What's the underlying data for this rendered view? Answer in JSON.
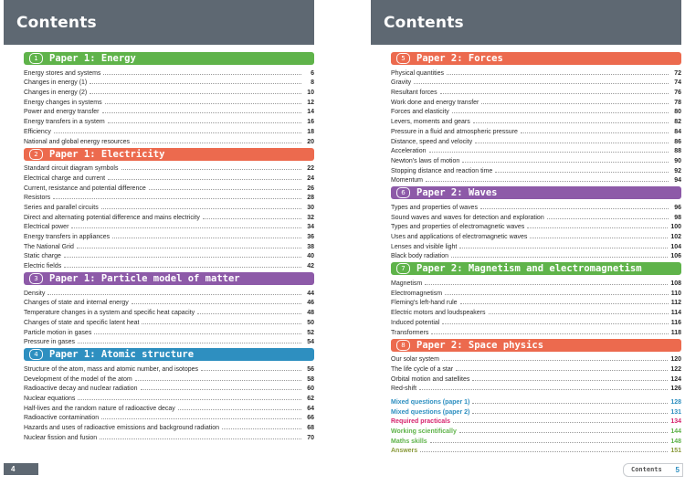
{
  "left_page": {
    "title": "Contents",
    "page_number": "4",
    "sections": [
      {
        "num": "1",
        "title": "Paper 1: Energy",
        "color": "#5fb34a",
        "entries": [
          {
            "text": "Energy stores and systems",
            "page": "6"
          },
          {
            "text": "Changes in energy (1)",
            "page": "8"
          },
          {
            "text": "Changes in energy (2)",
            "page": "10"
          },
          {
            "text": "Energy changes in systems",
            "page": "12"
          },
          {
            "text": "Power and energy transfer",
            "page": "14"
          },
          {
            "text": "Energy transfers in a system",
            "page": "16"
          },
          {
            "text": "Efficiency",
            "page": "18"
          },
          {
            "text": "National and global energy resources",
            "page": "20"
          }
        ]
      },
      {
        "num": "2",
        "title": "Paper 1: Electricity",
        "color": "#ec6a4e",
        "entries": [
          {
            "text": "Standard circuit diagram symbols",
            "page": "22"
          },
          {
            "text": "Electrical charge and current",
            "page": "24"
          },
          {
            "text": "Current, resistance and potential difference",
            "page": "26"
          },
          {
            "text": "Resistors",
            "page": "28"
          },
          {
            "text": "Series and parallel circuits",
            "page": "30"
          },
          {
            "text": "Direct and alternating potential difference and mains electricity",
            "page": "32"
          },
          {
            "text": "Electrical power",
            "page": "34"
          },
          {
            "text": "Energy transfers in appliances",
            "page": "36"
          },
          {
            "text": "The National Grid",
            "page": "38"
          },
          {
            "text": "Static charge",
            "page": "40"
          },
          {
            "text": "Electric fields",
            "page": "42"
          }
        ]
      },
      {
        "num": "3",
        "title": "Paper 1: Particle model of matter",
        "color": "#8d5aa8",
        "entries": [
          {
            "text": "Density",
            "page": "44"
          },
          {
            "text": "Changes of state and internal energy",
            "page": "46"
          },
          {
            "text": "Temperature changes in a system and specific heat capacity",
            "page": "48"
          },
          {
            "text": "Changes of state and specific latent heat",
            "page": "50"
          },
          {
            "text": "Particle motion in gases",
            "page": "52"
          },
          {
            "text": "Pressure in gases",
            "page": "54"
          }
        ]
      },
      {
        "num": "4",
        "title": "Paper 1: Atomic structure",
        "color": "#2e8fc0",
        "entries": [
          {
            "text": "Structure of the atom, mass and atomic number, and isotopes",
            "page": "56"
          },
          {
            "text": "Development of the model of the atom",
            "page": "58"
          },
          {
            "text": "Radioactive decay and nuclear radiation",
            "page": "60"
          },
          {
            "text": "Nuclear equations",
            "page": "62"
          },
          {
            "text": "Half-lives and the random nature of radioactive decay",
            "page": "64"
          },
          {
            "text": "Radioactive contamination",
            "page": "66"
          },
          {
            "text": "Hazards and uses of radioactive emissions and background radiation",
            "page": "68"
          },
          {
            "text": "Nuclear fission and fusion",
            "page": "70"
          }
        ]
      }
    ]
  },
  "right_page": {
    "title": "Contents",
    "footer_label": "Contents",
    "page_number": "5",
    "sections": [
      {
        "num": "5",
        "title": "Paper 2: Forces",
        "color": "#ec6a4e",
        "entries": [
          {
            "text": "Physical quantities",
            "page": "72"
          },
          {
            "text": "Gravity",
            "page": "74"
          },
          {
            "text": "Resultant forces",
            "page": "76"
          },
          {
            "text": "Work done and energy transfer",
            "page": "78"
          },
          {
            "text": "Forces and elasticity",
            "page": "80"
          },
          {
            "text": "Levers, moments and gears",
            "page": "82"
          },
          {
            "text": "Pressure in a fluid and atmospheric pressure",
            "page": "84"
          },
          {
            "text": "Distance, speed and velocity",
            "page": "86"
          },
          {
            "text": "Acceleration",
            "page": "88"
          },
          {
            "text": "Newton's laws of motion",
            "page": "90"
          },
          {
            "text": "Stopping distance and reaction time",
            "page": "92"
          },
          {
            "text": "Momentum",
            "page": "94"
          }
        ]
      },
      {
        "num": "6",
        "title": "Paper 2: Waves",
        "color": "#8d5aa8",
        "entries": [
          {
            "text": "Types and properties of waves",
            "page": "96"
          },
          {
            "text": "Sound waves and waves for detection and exploration",
            "page": "98"
          },
          {
            "text": "Types and properties of electromagnetic waves",
            "page": "100"
          },
          {
            "text": "Uses and applications of electromagnetic waves",
            "page": "102"
          },
          {
            "text": "Lenses and visible light",
            "page": "104"
          },
          {
            "text": "Black body radiation",
            "page": "106"
          }
        ]
      },
      {
        "num": "7",
        "title": "Paper 2: Magnetism and electromagnetism",
        "color": "#5fb34a",
        "entries": [
          {
            "text": "Magnetism",
            "page": "108"
          },
          {
            "text": "Electromagnetism",
            "page": "110"
          },
          {
            "text": "Fleming's left-hand rule",
            "page": "112"
          },
          {
            "text": "Electric motors and loudspeakers",
            "page": "114"
          },
          {
            "text": "Induced potential",
            "page": "116"
          },
          {
            "text": "Transformers",
            "page": "118"
          }
        ]
      },
      {
        "num": "8",
        "title": "Paper 2: Space physics",
        "color": "#ec6a4e",
        "entries": [
          {
            "text": "Our solar system",
            "page": "120"
          },
          {
            "text": "The life cycle of a star",
            "page": "122"
          },
          {
            "text": "Orbital motion and satellites",
            "page": "124"
          },
          {
            "text": "Red-shift",
            "page": "126"
          }
        ]
      }
    ],
    "extras": [
      {
        "text": "Mixed questions (paper 1)",
        "page": "128",
        "color": "#2e8fc0"
      },
      {
        "text": "Mixed questions (paper 2)",
        "page": "131",
        "color": "#2e8fc0"
      },
      {
        "text": "Required practicals",
        "page": "134",
        "color": "#d6246e"
      },
      {
        "text": "Working scientifically",
        "page": "144",
        "color": "#5fb34a"
      },
      {
        "text": "Maths skills",
        "page": "148",
        "color": "#5fb34a"
      },
      {
        "text": "Answers",
        "page": "151",
        "color": "#8a9a3a"
      }
    ]
  }
}
